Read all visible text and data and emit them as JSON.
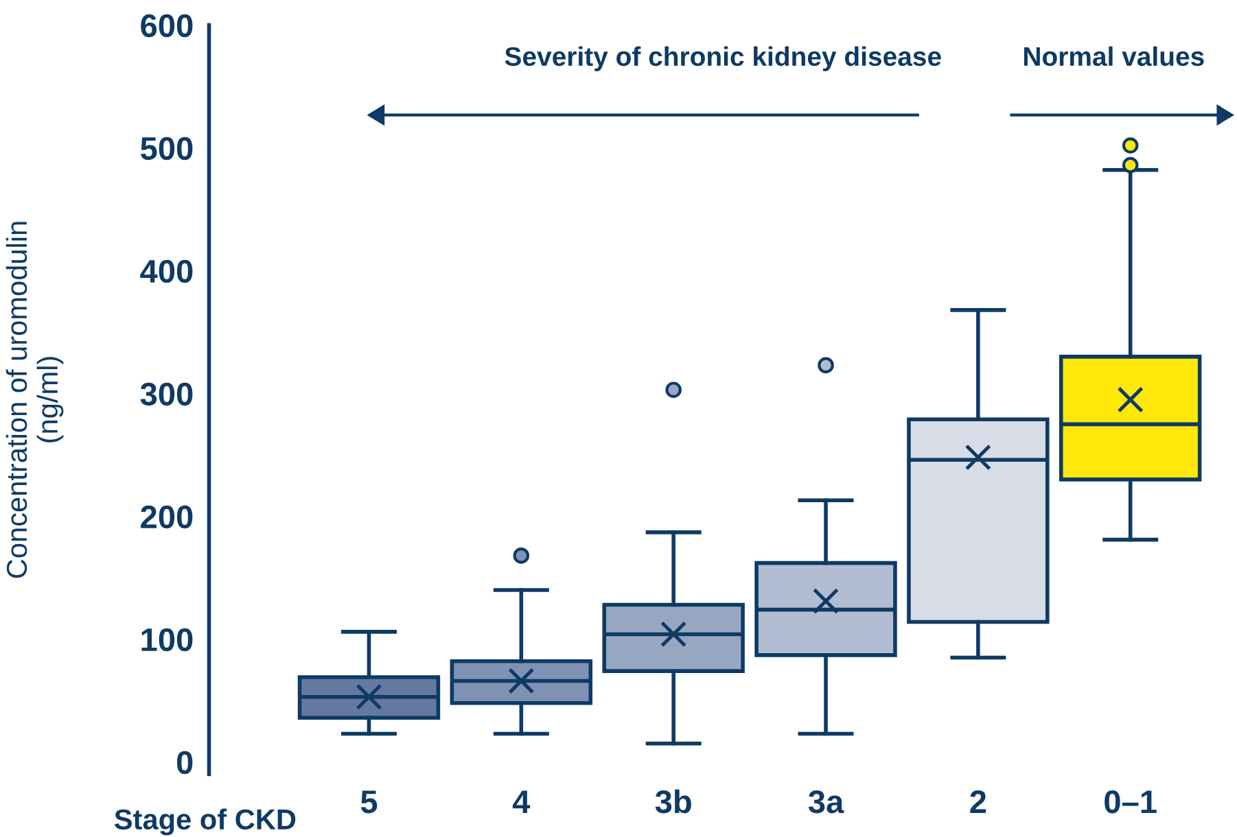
{
  "chart_data": {
    "type": "box",
    "xlabel": "Stage of CKD",
    "ylabel": "Concentration of uromodulin\n(ng/ml)",
    "categories": [
      "5",
      "4",
      "3b",
      "3a",
      "2",
      "0–1"
    ],
    "colors": [
      "#63799f",
      "#8092b4",
      "#98a7c0",
      "#b3bdd2",
      "#d7dce6",
      "#ffe70a"
    ],
    "boxes": [
      {
        "low": 23,
        "q1": 36,
        "median": 53,
        "q3": 69,
        "high": 106,
        "mean": 53
      },
      {
        "low": 23,
        "q1": 48,
        "median": 66,
        "q3": 82,
        "high": 140,
        "mean": 66,
        "outliers": [
          168
        ]
      },
      {
        "low": 15,
        "q1": 74,
        "median": 104,
        "q3": 128,
        "high": 187,
        "mean": 104,
        "outliers": [
          303
        ]
      },
      {
        "low": 23,
        "q1": 87,
        "median": 124,
        "q3": 162,
        "high": 213,
        "mean": 131,
        "outliers": [
          323
        ]
      },
      {
        "low": 85,
        "q1": 114,
        "median": 246,
        "q3": 279,
        "high": 368,
        "mean": 248
      },
      {
        "low": 181,
        "q1": 230,
        "median": 275,
        "q3": 330,
        "high": 482,
        "mean": 295,
        "outliers": [
          486,
          502
        ]
      }
    ],
    "ylim": [
      -10,
      600
    ],
    "yticks": [
      0,
      100,
      200,
      300,
      400,
      500,
      600
    ],
    "grid": false,
    "annotations": [
      "Severity of chronic kidney disease",
      "Normal values"
    ]
  }
}
